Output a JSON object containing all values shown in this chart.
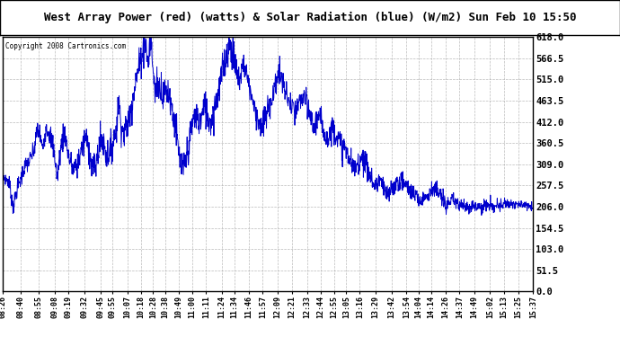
{
  "title": "West Array Power (red) (watts) & Solar Radiation (blue) (W/m2) Sun Feb 10 15:50",
  "copyright": "Copyright 2008 Cartronics.com",
  "background_color": "#ffffff",
  "plot_bg_color": "#ffffff",
  "grid_color": "#aaaaaa",
  "line_color": "#0000cc",
  "ylim": [
    0.0,
    618.0
  ],
  "yticks": [
    0.0,
    51.5,
    103.0,
    154.5,
    206.0,
    257.5,
    309.0,
    360.5,
    412.0,
    463.5,
    515.0,
    566.5,
    618.0
  ],
  "xtick_labels": [
    "08:26",
    "08:40",
    "08:55",
    "09:08",
    "09:19",
    "09:32",
    "09:45",
    "09:55",
    "10:07",
    "10:18",
    "10:28",
    "10:38",
    "10:49",
    "11:00",
    "11:11",
    "11:24",
    "11:34",
    "11:46",
    "11:57",
    "12:09",
    "12:21",
    "12:33",
    "12:44",
    "12:55",
    "13:05",
    "13:16",
    "13:29",
    "13:42",
    "13:54",
    "14:04",
    "14:14",
    "14:26",
    "14:37",
    "14:49",
    "15:02",
    "15:13",
    "15:25",
    "15:37"
  ],
  "curve_points": [
    [
      0,
      280
    ],
    [
      5,
      265
    ],
    [
      8,
      205
    ],
    [
      12,
      255
    ],
    [
      14,
      270
    ],
    [
      18,
      305
    ],
    [
      22,
      320
    ],
    [
      25,
      340
    ],
    [
      28,
      395
    ],
    [
      30,
      380
    ],
    [
      32,
      345
    ],
    [
      35,
      400
    ],
    [
      38,
      385
    ],
    [
      40,
      360
    ],
    [
      42,
      330
    ],
    [
      44,
      275
    ],
    [
      46,
      330
    ],
    [
      48,
      365
    ],
    [
      50,
      390
    ],
    [
      52,
      350
    ],
    [
      54,
      320
    ],
    [
      57,
      295
    ],
    [
      60,
      305
    ],
    [
      63,
      340
    ],
    [
      65,
      355
    ],
    [
      67,
      375
    ],
    [
      69,
      360
    ],
    [
      72,
      305
    ],
    [
      75,
      300
    ],
    [
      78,
      350
    ],
    [
      80,
      370
    ],
    [
      82,
      360
    ],
    [
      84,
      330
    ],
    [
      87,
      340
    ],
    [
      90,
      370
    ],
    [
      92,
      395
    ],
    [
      94,
      460
    ],
    [
      96,
      410
    ],
    [
      98,
      380
    ],
    [
      100,
      400
    ],
    [
      102,
      415
    ],
    [
      104,
      440
    ],
    [
      106,
      485
    ],
    [
      108,
      515
    ],
    [
      110,
      540
    ],
    [
      112,
      570
    ],
    [
      114,
      590
    ],
    [
      115,
      618
    ],
    [
      116,
      600
    ],
    [
      117,
      570
    ],
    [
      118,
      555
    ],
    [
      119,
      590
    ],
    [
      120,
      610
    ],
    [
      121,
      580
    ],
    [
      122,
      540
    ],
    [
      123,
      500
    ],
    [
      124,
      480
    ],
    [
      125,
      515
    ],
    [
      126,
      505
    ],
    [
      127,
      490
    ],
    [
      128,
      510
    ],
    [
      129,
      490
    ],
    [
      130,
      470
    ],
    [
      132,
      490
    ],
    [
      134,
      485
    ],
    [
      136,
      470
    ],
    [
      138,
      430
    ],
    [
      140,
      410
    ],
    [
      142,
      350
    ],
    [
      144,
      310
    ],
    [
      146,
      290
    ],
    [
      148,
      310
    ],
    [
      150,
      340
    ],
    [
      152,
      370
    ],
    [
      154,
      410
    ],
    [
      156,
      430
    ],
    [
      158,
      420
    ],
    [
      160,
      410
    ],
    [
      162,
      430
    ],
    [
      164,
      450
    ],
    [
      166,
      430
    ],
    [
      168,
      415
    ],
    [
      170,
      420
    ],
    [
      172,
      450
    ],
    [
      174,
      475
    ],
    [
      176,
      500
    ],
    [
      178,
      530
    ],
    [
      180,
      560
    ],
    [
      182,
      575
    ],
    [
      184,
      600
    ],
    [
      186,
      585
    ],
    [
      188,
      560
    ],
    [
      190,
      530
    ],
    [
      192,
      510
    ],
    [
      194,
      540
    ],
    [
      196,
      555
    ],
    [
      198,
      530
    ],
    [
      200,
      500
    ],
    [
      202,
      480
    ],
    [
      204,
      450
    ],
    [
      206,
      430
    ],
    [
      208,
      415
    ],
    [
      210,
      390
    ],
    [
      212,
      410
    ],
    [
      214,
      430
    ],
    [
      216,
      445
    ],
    [
      218,
      465
    ],
    [
      220,
      480
    ],
    [
      222,
      510
    ],
    [
      224,
      530
    ],
    [
      226,
      520
    ],
    [
      228,
      500
    ],
    [
      230,
      480
    ],
    [
      232,
      465
    ],
    [
      234,
      450
    ],
    [
      236,
      440
    ],
    [
      238,
      430
    ],
    [
      240,
      450
    ],
    [
      242,
      465
    ],
    [
      244,
      475
    ],
    [
      246,
      460
    ],
    [
      248,
      440
    ],
    [
      250,
      425
    ],
    [
      252,
      400
    ],
    [
      254,
      410
    ],
    [
      256,
      425
    ],
    [
      258,
      415
    ],
    [
      260,
      400
    ],
    [
      262,
      385
    ],
    [
      264,
      370
    ],
    [
      266,
      385
    ],
    [
      268,
      400
    ],
    [
      270,
      390
    ],
    [
      272,
      375
    ],
    [
      274,
      360
    ],
    [
      276,
      355
    ],
    [
      278,
      345
    ],
    [
      280,
      335
    ],
    [
      282,
      320
    ],
    [
      284,
      305
    ],
    [
      286,
      295
    ],
    [
      288,
      310
    ],
    [
      290,
      320
    ],
    [
      292,
      330
    ],
    [
      294,
      315
    ],
    [
      296,
      300
    ],
    [
      298,
      285
    ],
    [
      300,
      270
    ],
    [
      302,
      255
    ],
    [
      304,
      260
    ],
    [
      306,
      275
    ],
    [
      308,
      260
    ],
    [
      310,
      245
    ],
    [
      312,
      230
    ],
    [
      315,
      245
    ],
    [
      318,
      258
    ],
    [
      321,
      265
    ],
    [
      324,
      270
    ],
    [
      327,
      260
    ],
    [
      330,
      250
    ],
    [
      333,
      240
    ],
    [
      336,
      230
    ],
    [
      339,
      220
    ],
    [
      342,
      230
    ],
    [
      345,
      238
    ],
    [
      348,
      245
    ],
    [
      351,
      250
    ],
    [
      354,
      240
    ],
    [
      357,
      225
    ],
    [
      360,
      212
    ],
    [
      363,
      215
    ],
    [
      366,
      220
    ],
    [
      369,
      215
    ],
    [
      372,
      210
    ],
    [
      375,
      207
    ],
    [
      378,
      206
    ],
    [
      381,
      210
    ],
    [
      384,
      208
    ],
    [
      387,
      205
    ],
    [
      390,
      208
    ],
    [
      393,
      210
    ],
    [
      396,
      208
    ],
    [
      399,
      205
    ],
    [
      402,
      207
    ],
    [
      405,
      210
    ],
    [
      408,
      215
    ],
    [
      411,
      212
    ],
    [
      414,
      215
    ],
    [
      417,
      213
    ],
    [
      420,
      210
    ],
    [
      423,
      208
    ],
    [
      425,
      212
    ],
    [
      427,
      209
    ],
    [
      429,
      208
    ],
    [
      431,
      206
    ]
  ]
}
